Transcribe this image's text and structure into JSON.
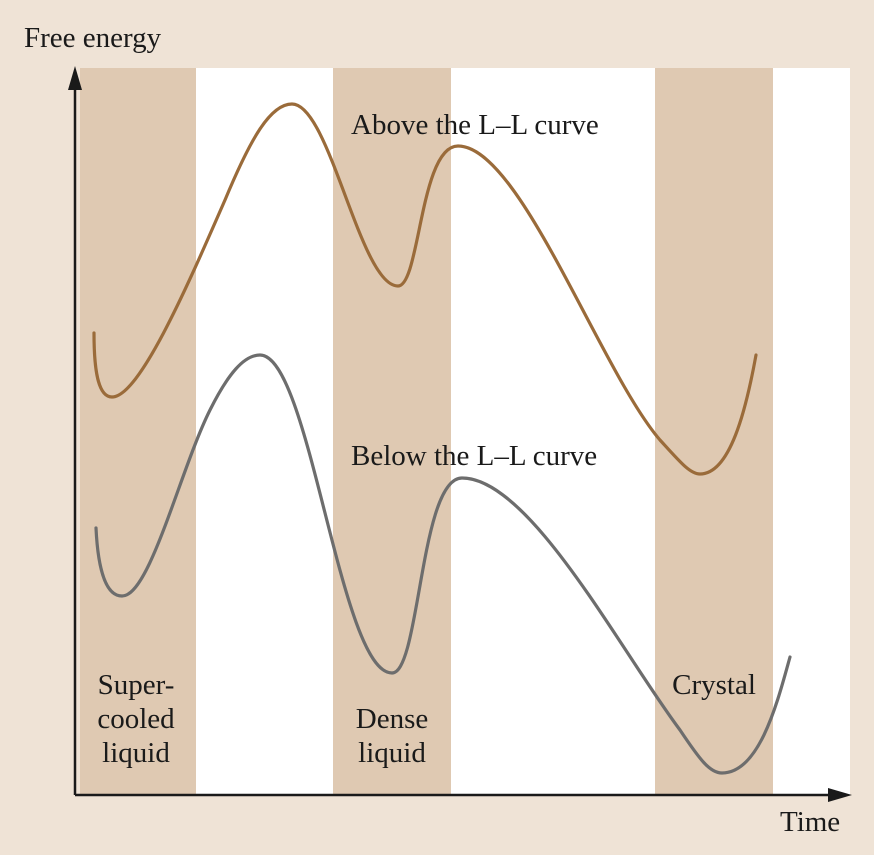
{
  "axes": {
    "y_label": "Free energy",
    "x_label": "Time"
  },
  "curves": {
    "above": {
      "label": "Above the L–L curve",
      "color": "#9a6b3a"
    },
    "below": {
      "label": "Below the L–L curve",
      "color": "#6d6d6d"
    }
  },
  "bands": {
    "color": "#dfc9b2",
    "plot_background": "#ffffff",
    "supercooled": {
      "line1": "Super-",
      "line2": "cooled",
      "line3": "liquid"
    },
    "dense": {
      "line1": "Dense",
      "line2": "liquid"
    },
    "crystal": {
      "line1": "Crystal"
    }
  },
  "colors": {
    "page_background": "#efe3d6",
    "axis": "#1a1a1a"
  }
}
